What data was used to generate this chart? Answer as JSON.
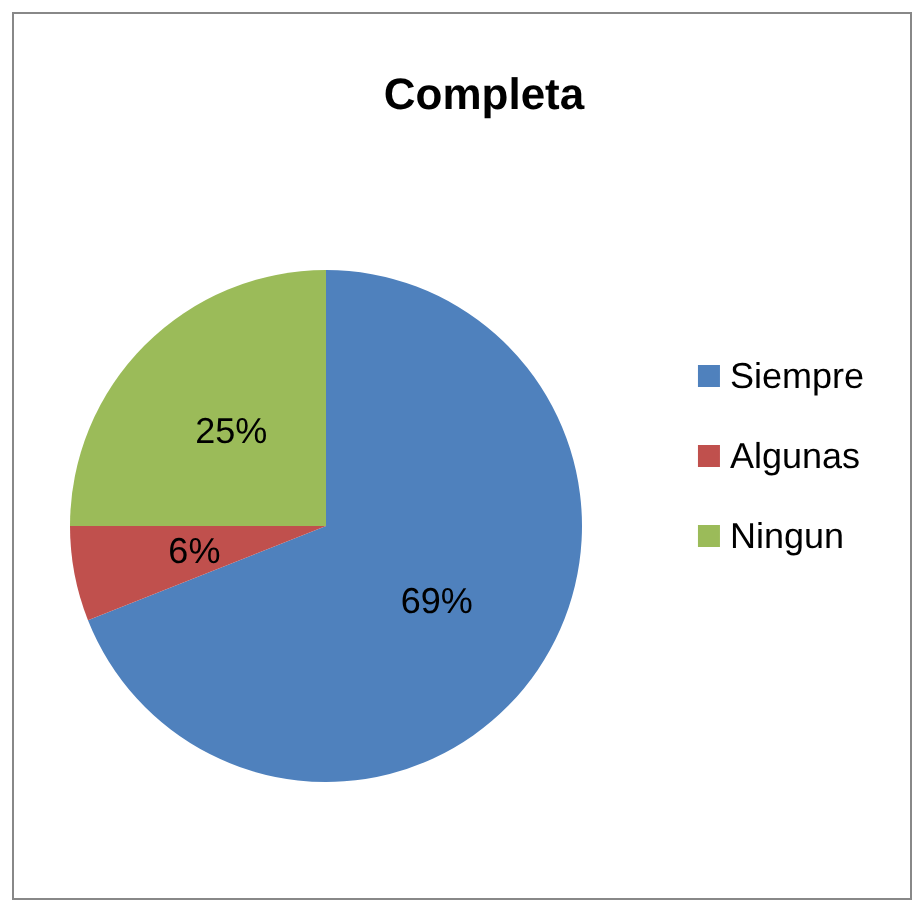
{
  "chart_data": {
    "type": "pie",
    "title": "Completa",
    "categories": [
      "Siempre",
      "Algunas",
      "Ningun"
    ],
    "values": [
      69,
      6,
      25
    ],
    "colors": [
      "#4f81bd",
      "#c0504d",
      "#9bbb59"
    ],
    "value_labels": [
      "69%",
      "6%",
      "25%"
    ],
    "legend": "right"
  }
}
